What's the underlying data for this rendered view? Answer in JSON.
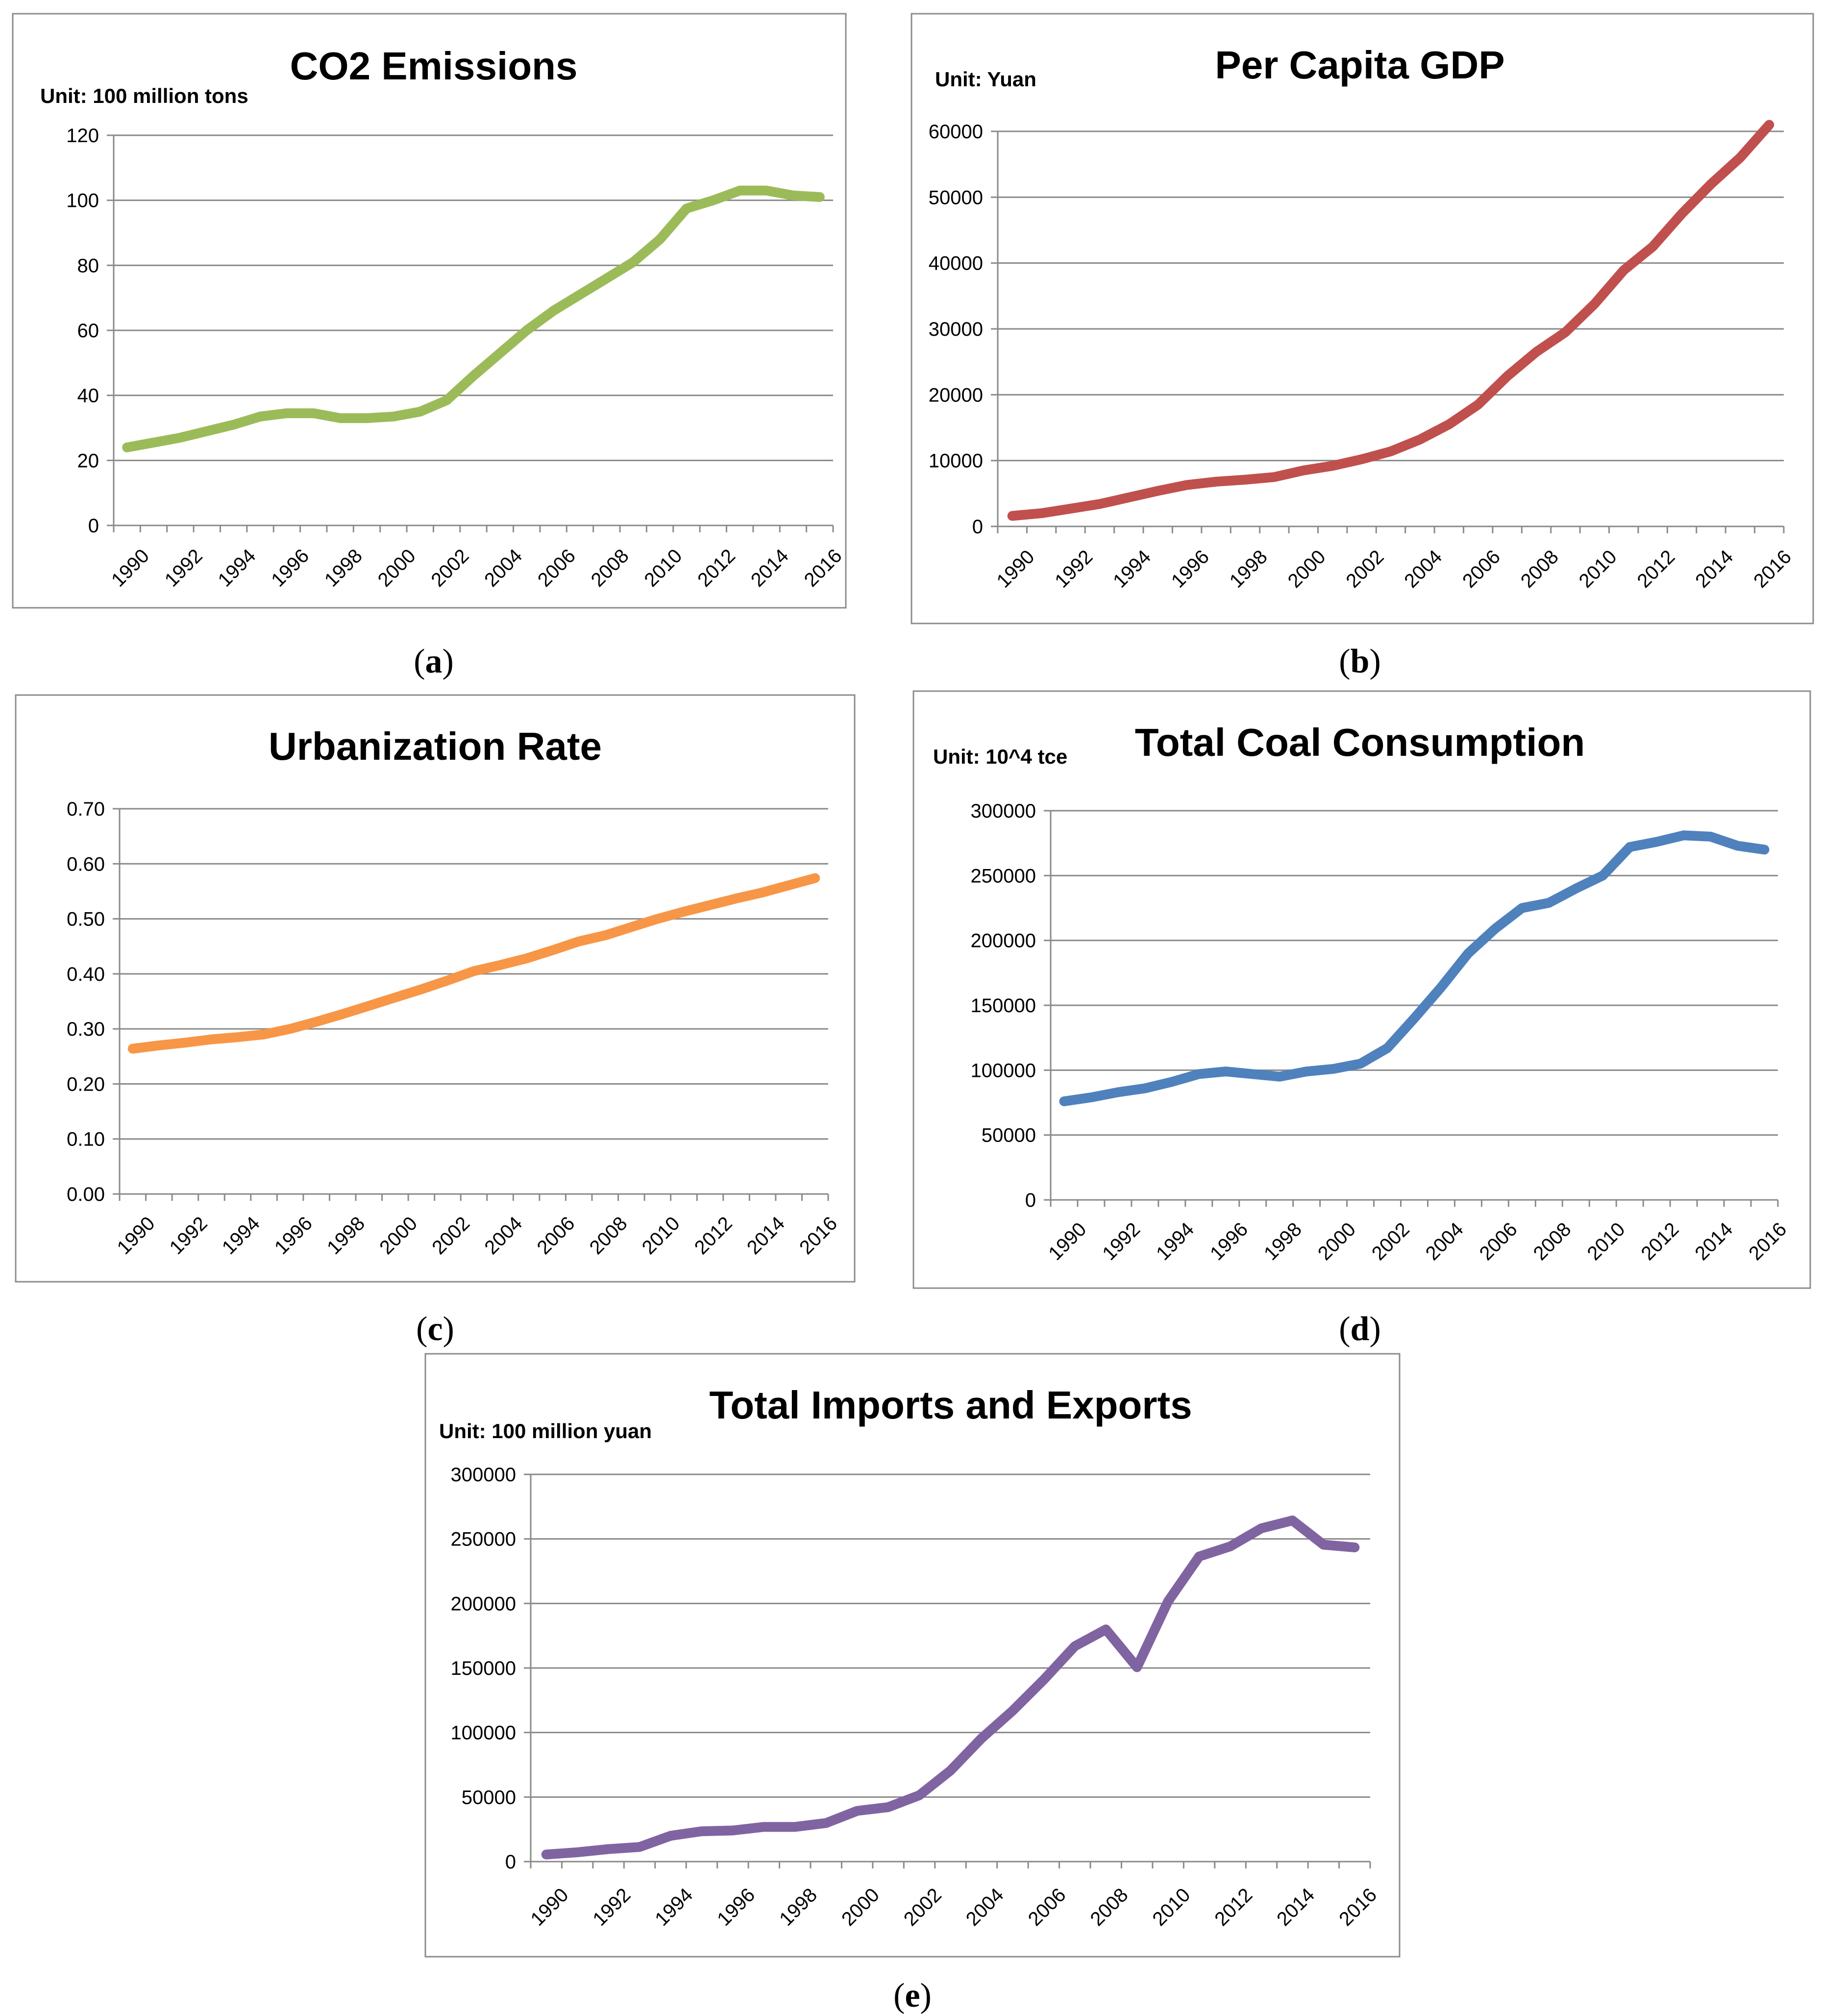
{
  "chart_data": [
    {
      "id": "a",
      "type": "line",
      "title": "CO2 Emissions",
      "unit": "Unit: 100 million tons",
      "caption": "a",
      "color": "#9bbb59",
      "x": [
        1990,
        1991,
        1992,
        1993,
        1994,
        1995,
        1996,
        1997,
        1998,
        1999,
        2000,
        2001,
        2002,
        2003,
        2004,
        2005,
        2006,
        2007,
        2008,
        2009,
        2010,
        2011,
        2012,
        2013,
        2014,
        2015,
        2016
      ],
      "values": [
        24,
        25.5,
        27,
        29,
        31,
        33.5,
        34.5,
        34.5,
        33,
        33,
        33.5,
        35,
        38.5,
        46,
        53,
        60,
        66,
        71,
        76,
        81,
        88,
        97.5,
        100,
        103,
        103,
        101.5,
        101
      ],
      "ylim": [
        0,
        120
      ],
      "yticks": [
        "0",
        "20",
        "40",
        "60",
        "80",
        "100",
        "120"
      ],
      "xticks": [
        "1990",
        "1992",
        "1994",
        "1996",
        "1998",
        "2000",
        "2002",
        "2004",
        "2006",
        "2008",
        "2010",
        "2012",
        "2014",
        "2016"
      ],
      "grid": true
    },
    {
      "id": "b",
      "type": "line",
      "title": "Per Capita GDP",
      "unit": "Unit: Yuan",
      "caption": "b",
      "color": "#c0504d",
      "x": [
        1990,
        1991,
        1992,
        1993,
        1994,
        1995,
        1996,
        1997,
        1998,
        1999,
        2000,
        2001,
        2002,
        2003,
        2004,
        2005,
        2006,
        2007,
        2008,
        2009,
        2010,
        2011,
        2012,
        2013,
        2014,
        2015,
        2016
      ],
      "values": [
        1600,
        2000,
        2700,
        3400,
        4400,
        5400,
        6300,
        6800,
        7100,
        7500,
        8500,
        9200,
        10200,
        11400,
        13200,
        15500,
        18500,
        22800,
        26500,
        29500,
        33800,
        38900,
        42500,
        47500,
        52000,
        56000,
        61000
      ],
      "ylim": [
        0,
        60000
      ],
      "yticks": [
        "0",
        "10000",
        "20000",
        "30000",
        "40000",
        "50000",
        "60000"
      ],
      "xticks": [
        "1990",
        "1992",
        "1994",
        "1996",
        "1998",
        "2000",
        "2002",
        "2004",
        "2006",
        "2008",
        "2010",
        "2012",
        "2014",
        "2016"
      ],
      "grid": true
    },
    {
      "id": "c",
      "type": "line",
      "title": "Urbanization Rate",
      "unit": "",
      "caption": "c",
      "color": "#f79646",
      "x": [
        1990,
        1991,
        1992,
        1993,
        1994,
        1995,
        1996,
        1997,
        1998,
        1999,
        2000,
        2001,
        2002,
        2003,
        2004,
        2005,
        2006,
        2007,
        2008,
        2009,
        2010,
        2011,
        2012,
        2013,
        2014,
        2015,
        2016
      ],
      "values": [
        0.264,
        0.27,
        0.275,
        0.281,
        0.285,
        0.29,
        0.3,
        0.313,
        0.327,
        0.342,
        0.357,
        0.372,
        0.388,
        0.405,
        0.416,
        0.428,
        0.443,
        0.459,
        0.47,
        0.485,
        0.5,
        0.513,
        0.525,
        0.537,
        0.548,
        0.561,
        0.574
      ],
      "ylim": [
        0,
        0.7
      ],
      "yticks": [
        "0.00",
        "0.10",
        "0.20",
        "0.30",
        "0.40",
        "0.50",
        "0.60",
        "0.70"
      ],
      "xticks": [
        "1990",
        "1992",
        "1994",
        "1996",
        "1998",
        "2000",
        "2002",
        "2004",
        "2006",
        "2008",
        "2010",
        "2012",
        "2014",
        "2016"
      ],
      "grid": true
    },
    {
      "id": "d",
      "type": "line",
      "title": "Total Coal Consumption",
      "unit": "Unit: 10^4 tce",
      "caption": "d",
      "color": "#4f81bd",
      "x": [
        1990,
        1991,
        1992,
        1993,
        1994,
        1995,
        1996,
        1997,
        1998,
        1999,
        2000,
        2001,
        2002,
        2003,
        2004,
        2005,
        2006,
        2007,
        2008,
        2009,
        2010,
        2011,
        2012,
        2013,
        2014,
        2015,
        2016
      ],
      "values": [
        76000,
        79000,
        83000,
        86000,
        91000,
        97000,
        99000,
        97000,
        95000,
        99000,
        101000,
        105000,
        117000,
        140000,
        164000,
        190000,
        209000,
        225000,
        229000,
        240000,
        250000,
        272000,
        276000,
        281000,
        280000,
        273000,
        270000
      ],
      "ylim": [
        0,
        300000
      ],
      "yticks": [
        "0",
        "50000",
        "100000",
        "150000",
        "200000",
        "250000",
        "300000"
      ],
      "xticks": [
        "1990",
        "1992",
        "1994",
        "1996",
        "1998",
        "2000",
        "2002",
        "2004",
        "2006",
        "2008",
        "2010",
        "2012",
        "2014",
        "2016"
      ],
      "grid": true
    },
    {
      "id": "e",
      "type": "line",
      "title": "Total Imports and Exports",
      "unit": "Unit: 100 million yuan",
      "caption": "e",
      "color": "#8064a2",
      "x": [
        1990,
        1991,
        1992,
        1993,
        1994,
        1995,
        1996,
        1997,
        1998,
        1999,
        2000,
        2001,
        2002,
        2003,
        2004,
        2005,
        2006,
        2007,
        2008,
        2009,
        2010,
        2011,
        2012,
        2013,
        2014,
        2015,
        2016
      ],
      "values": [
        5500,
        7200,
        9700,
        11300,
        20000,
        23500,
        24100,
        26900,
        26900,
        29900,
        39300,
        42200,
        51400,
        70500,
        95500,
        116900,
        140900,
        166900,
        179900,
        150600,
        201700,
        236400,
        244200,
        258200,
        264300,
        245500,
        243400
      ],
      "ylim": [
        0,
        300000
      ],
      "yticks": [
        "0",
        "50000",
        "100000",
        "150000",
        "200000",
        "250000",
        "300000"
      ],
      "xticks": [
        "1990",
        "1992",
        "1994",
        "1996",
        "1998",
        "2000",
        "2002",
        "2004",
        "2006",
        "2008",
        "2010",
        "2012",
        "2014",
        "2016"
      ],
      "grid": true
    }
  ]
}
